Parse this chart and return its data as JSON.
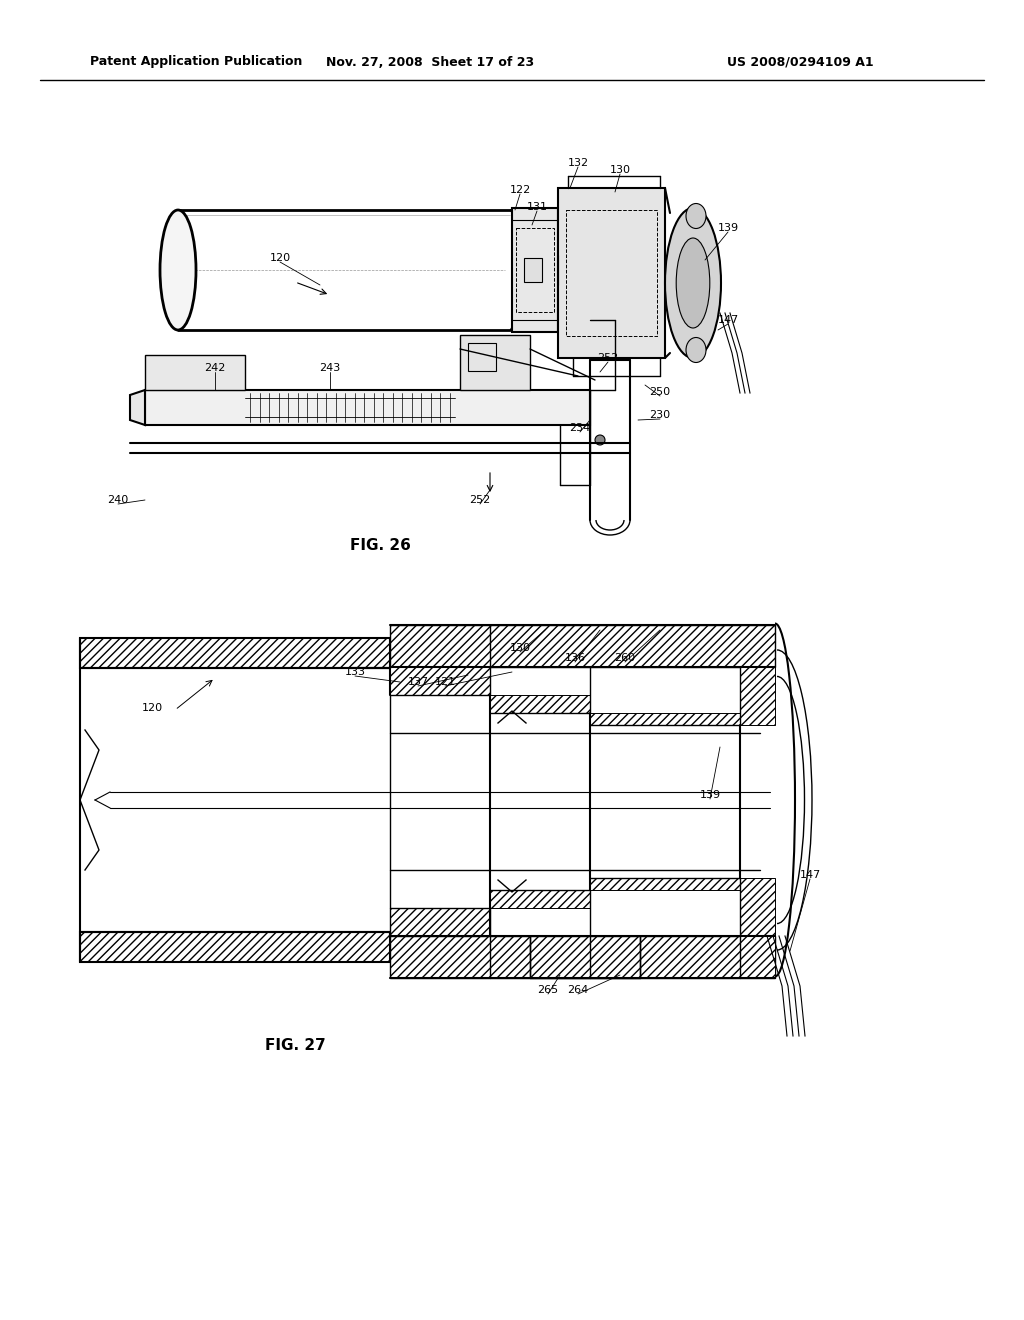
{
  "fig_width": 10.24,
  "fig_height": 13.2,
  "dpi": 100,
  "bg_color": "#ffffff",
  "header_left": "Patent Application Publication",
  "header_mid": "Nov. 27, 2008  Sheet 17 of 23",
  "header_right": "US 2008/0294109 A1",
  "fig26_label": "FIG. 26",
  "fig27_label": "FIG. 27",
  "header_fontsize": 9,
  "label_fontsize": 8,
  "fig_label_fontsize": 11
}
